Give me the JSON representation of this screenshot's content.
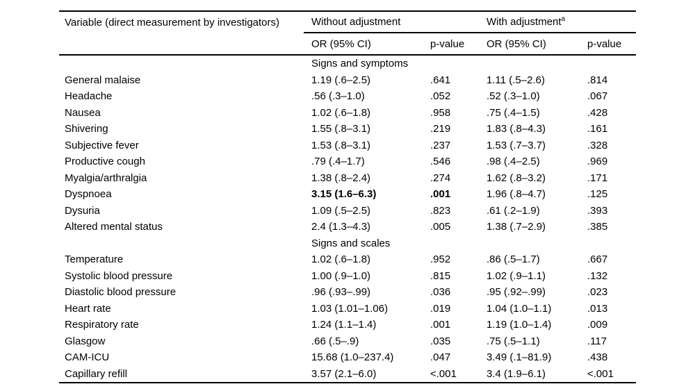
{
  "table": {
    "variable_header": "Variable (direct measurement by investigators)",
    "groups": [
      {
        "label": "Without adjustment",
        "footnote_marker": ""
      },
      {
        "label": "With adjustment",
        "footnote_marker": "a"
      }
    ],
    "sub_headers": [
      "OR (95% CI)",
      "p-value",
      "OR (95% CI)",
      "p-value"
    ],
    "sections": [
      {
        "title": "Signs and symptoms",
        "rows": [
          {
            "variable": "General malaise",
            "or_without": "1.19 (.6–2.5)",
            "p_without": ".641",
            "or_with": "1.11 (.5–2.6)",
            "p_with": ".814",
            "bold_without": false
          },
          {
            "variable": "Headache",
            "or_without": ".56 (.3–1.0)",
            "p_without": ".052",
            "or_with": ".52 (.3–1.0)",
            "p_with": ".067",
            "bold_without": false
          },
          {
            "variable": "Nausea",
            "or_without": "1.02 (.6–1.8)",
            "p_without": ".958",
            "or_with": ".75 (.4–1.5)",
            "p_with": ".428",
            "bold_without": false
          },
          {
            "variable": "Shivering",
            "or_without": "1.55 (.8–3.1)",
            "p_without": ".219",
            "or_with": "1.83 (.8–4.3)",
            "p_with": ".161",
            "bold_without": false
          },
          {
            "variable": "Subjective fever",
            "or_without": "1.53 (.8–3.1)",
            "p_without": ".237",
            "or_with": "1.53 (.7–3.7)",
            "p_with": ".328",
            "bold_without": false
          },
          {
            "variable": "Productive cough",
            "or_without": ".79 (.4–1.7)",
            "p_without": ".546",
            "or_with": ".98 (.4–2.5)",
            "p_with": ".969",
            "bold_without": false
          },
          {
            "variable": "Myalgia/arthralgia",
            "or_without": "1.38 (.8–2.4)",
            "p_without": ".274",
            "or_with": "1.62 (.8–3.2)",
            "p_with": ".171",
            "bold_without": false
          },
          {
            "variable": "Dyspnoea",
            "or_without": "3.15 (1.6–6.3)",
            "p_without": ".001",
            "or_with": "1.96 (.8–4.7)",
            "p_with": ".125",
            "bold_without": true
          },
          {
            "variable": "Dysuria",
            "or_without": "1.09 (.5–2.5)",
            "p_without": ".823",
            "or_with": ".61 (.2–1.9)",
            "p_with": ".393",
            "bold_without": false
          },
          {
            "variable": "Altered mental status",
            "or_without": "2.4 (1.3–4.3)",
            "p_without": ".005",
            "or_with": "1.38 (.7–2.9)",
            "p_with": ".385",
            "bold_without": false
          }
        ]
      },
      {
        "title": "Signs and scales",
        "rows": [
          {
            "variable": "Temperature",
            "or_without": "1.02 (.6–1.8)",
            "p_without": ".952",
            "or_with": ".86 (.5–1.7)",
            "p_with": ".667",
            "bold_without": false
          },
          {
            "variable": "Systolic blood pressure",
            "or_without": "1.00 (.9–1.0)",
            "p_without": ".815",
            "or_with": "1.02 (.9–1.1)",
            "p_with": ".132",
            "bold_without": false
          },
          {
            "variable": "Diastolic blood pressure",
            "or_without": ".96 (.93–.99)",
            "p_without": ".036",
            "or_with": ".95 (.92–.99)",
            "p_with": ".023",
            "bold_without": false
          },
          {
            "variable": "Heart rate",
            "or_without": "1.03 (1.01–1.06)",
            "p_without": ".019",
            "or_with": "1.04 (1.0–1.1)",
            "p_with": ".013",
            "bold_without": false
          },
          {
            "variable": "Respiratory rate",
            "or_without": "1.24 (1.1–1.4)",
            "p_without": ".001",
            "or_with": "1.19 (1.0–1.4)",
            "p_with": ".009",
            "bold_without": false
          },
          {
            "variable": "Glasgow",
            "or_without": ".66 (.5–.9)",
            "p_without": ".035",
            "or_with": ".75 (.5–1.1)",
            "p_with": ".117",
            "bold_without": false
          },
          {
            "variable": "CAM-ICU",
            "or_without": "15.68 (1.0–237.4)",
            "p_without": ".047",
            "or_with": "3.49 (.1–81.9)",
            "p_with": ".438",
            "bold_without": false
          },
          {
            "variable": "Capillary refill",
            "or_without": "3.57 (2.1–6.0)",
            "p_without": "<.001",
            "or_with": "3.4 (1.9–6.1)",
            "p_with": "<.001",
            "bold_without": false
          }
        ]
      }
    ]
  }
}
